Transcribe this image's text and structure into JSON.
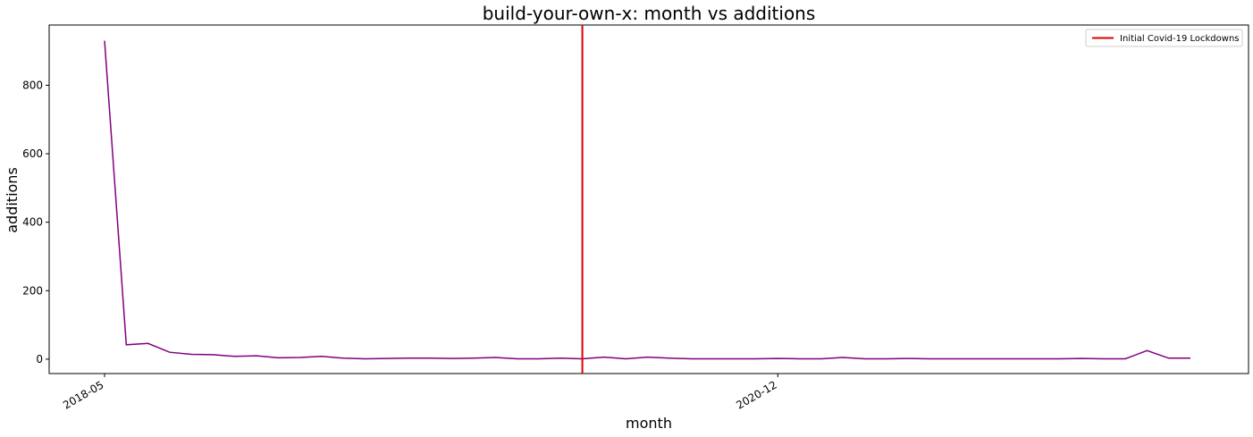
{
  "chart_data": {
    "type": "line",
    "title": "build-your-own-x: month vs additions",
    "xlabel": "month",
    "ylabel": "additions",
    "x": [
      "2018-05",
      "2018-06",
      "2018-07",
      "2018-08",
      "2018-09",
      "2018-10",
      "2018-11",
      "2018-12",
      "2019-01",
      "2019-02",
      "2019-03",
      "2019-04",
      "2019-05",
      "2019-06",
      "2019-07",
      "2019-08",
      "2019-09",
      "2019-10",
      "2019-11",
      "2019-12",
      "2020-01",
      "2020-02",
      "2020-03",
      "2020-04",
      "2020-05",
      "2020-06",
      "2020-07",
      "2020-08",
      "2020-09",
      "2020-10",
      "2020-11",
      "2020-12",
      "2021-01",
      "2021-02",
      "2021-03",
      "2021-04",
      "2021-05",
      "2021-06",
      "2021-07",
      "2021-08",
      "2021-09",
      "2021-10",
      "2021-11",
      "2021-12",
      "2022-01",
      "2022-02",
      "2022-03",
      "2022-04",
      "2022-05",
      "2022-06",
      "2022-07"
    ],
    "x_ticks": [
      "2018-05",
      "2020-12"
    ],
    "y_ticks": [
      0,
      200,
      400,
      600,
      800
    ],
    "ylim": [
      -42,
      976
    ],
    "series": [
      {
        "color": "#800080",
        "values": [
          930,
          42,
          46,
          20,
          14,
          13,
          8,
          10,
          4,
          5,
          8,
          3,
          1,
          2,
          3,
          3,
          2,
          3,
          5,
          1,
          1,
          3,
          1,
          6,
          1,
          6,
          3,
          1,
          1,
          1,
          1,
          2,
          1,
          1,
          5,
          1,
          1,
          2,
          1,
          1,
          1,
          1,
          1,
          1,
          1,
          2,
          1,
          1,
          25,
          3,
          3
        ]
      }
    ],
    "annotations": [
      {
        "type": "vline",
        "x": "2020-03",
        "label": "Initial Covid-19 Lockdowns",
        "color": "#e00000"
      }
    ],
    "legend": {
      "placement": "top-right",
      "entries": [
        "Initial Covid-19 Lockdowns"
      ]
    },
    "grid": false
  }
}
